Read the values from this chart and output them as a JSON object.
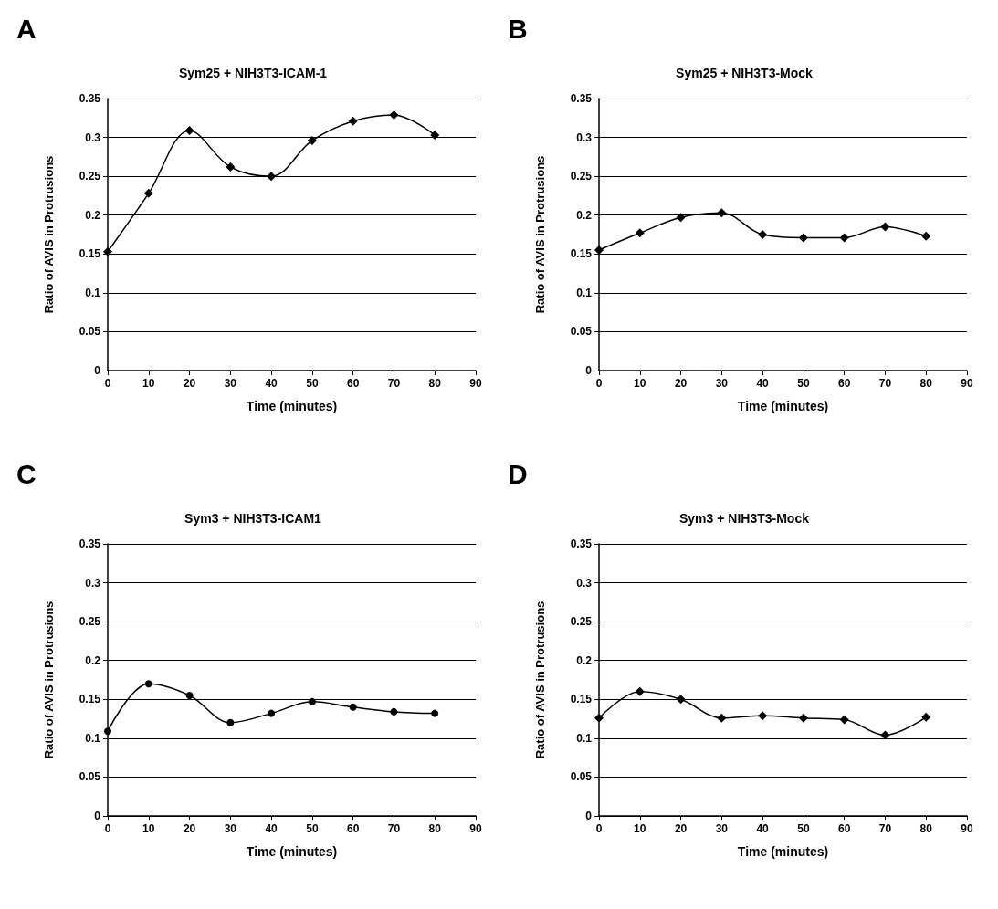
{
  "chart_data": [
    {
      "type": "line",
      "annotations": [
        "A"
      ],
      "title": "Sym25 + NIH3T3-ICAM-1",
      "xlabel": "Time (minutes)",
      "ylabel": "Ratio of AVIS in Protrusions",
      "x": [
        0,
        10,
        20,
        30,
        40,
        50,
        60,
        70,
        80
      ],
      "series": [
        {
          "color": "#000000",
          "values": [
            0.153,
            0.228,
            0.309,
            0.262,
            0.25,
            0.296,
            0.321,
            0.329,
            0.303
          ]
        }
      ],
      "xlim": [
        0,
        90
      ],
      "xticks": [
        0,
        10,
        20,
        30,
        40,
        50,
        60,
        70,
        80,
        90
      ],
      "ylim": [
        0,
        0.35
      ],
      "yticks": [
        0,
        0.05,
        0.1,
        0.15,
        0.2,
        0.25,
        0.3,
        0.35
      ],
      "grid": "y",
      "marker": "diamond",
      "line_style": "solid"
    },
    {
      "type": "line",
      "annotations": [
        "B"
      ],
      "title": "Sym25 + NIH3T3-Mock",
      "xlabel": "Time (minutes)",
      "ylabel": "Ratio of AVIS in Protrusions",
      "x": [
        0,
        10,
        20,
        30,
        40,
        50,
        60,
        70,
        80
      ],
      "series": [
        {
          "color": "#000000",
          "values": [
            0.155,
            0.177,
            0.197,
            0.203,
            0.175,
            0.171,
            0.171,
            0.185,
            0.173
          ]
        }
      ],
      "xlim": [
        0,
        90
      ],
      "xticks": [
        0,
        10,
        20,
        30,
        40,
        50,
        60,
        70,
        80,
        90
      ],
      "ylim": [
        0,
        0.35
      ],
      "yticks": [
        0,
        0.05,
        0.1,
        0.15,
        0.2,
        0.25,
        0.3,
        0.35
      ],
      "grid": "y",
      "marker": "diamond",
      "line_style": "solid"
    },
    {
      "type": "line",
      "annotations": [
        "C"
      ],
      "title": "Sym3 + NIH3T3-ICAM1",
      "xlabel": "Time (minutes)",
      "ylabel": "Ratio of AVIS in Protrusions",
      "x": [
        0,
        10,
        20,
        30,
        40,
        50,
        60,
        70,
        80
      ],
      "series": [
        {
          "color": "#000000",
          "values": [
            0.109,
            0.17,
            0.155,
            0.12,
            0.132,
            0.147,
            0.14,
            0.134,
            0.132
          ]
        }
      ],
      "xlim": [
        0,
        90
      ],
      "xticks": [
        0,
        10,
        20,
        30,
        40,
        50,
        60,
        70,
        80,
        90
      ],
      "ylim": [
        0,
        0.35
      ],
      "yticks": [
        0,
        0.05,
        0.1,
        0.15,
        0.2,
        0.25,
        0.3,
        0.35
      ],
      "grid": "y",
      "marker": "circle",
      "line_style": "solid"
    },
    {
      "type": "line",
      "annotations": [
        "D"
      ],
      "title": "Sym3 + NIH3T3-Mock",
      "xlabel": "Time (minutes)",
      "ylabel": "Ratio of AVIS in Protrusions",
      "x": [
        0,
        10,
        20,
        30,
        40,
        50,
        60,
        70,
        80
      ],
      "series": [
        {
          "color": "#000000",
          "values": [
            0.126,
            0.16,
            0.15,
            0.126,
            0.129,
            0.126,
            0.124,
            0.104,
            0.127
          ]
        }
      ],
      "xlim": [
        0,
        90
      ],
      "xticks": [
        0,
        10,
        20,
        30,
        40,
        50,
        60,
        70,
        80,
        90
      ],
      "ylim": [
        0,
        0.35
      ],
      "yticks": [
        0,
        0.05,
        0.1,
        0.15,
        0.2,
        0.25,
        0.3,
        0.35
      ],
      "grid": "y",
      "marker": "diamond",
      "line_style": "solid"
    }
  ]
}
